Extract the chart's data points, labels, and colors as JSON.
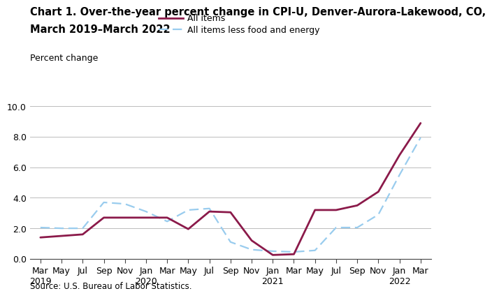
{
  "title_line1": "Chart 1. Over-the-year percent change in CPI-U, Denver-Aurora-Lakewood, CO,",
  "title_line2": "March 2019–March 2022",
  "ylabel": "Percent change",
  "source": "Source: U.S. Bureau of Labor Statistics.",
  "ylim": [
    0.0,
    10.0
  ],
  "yticks": [
    0.0,
    2.0,
    4.0,
    6.0,
    8.0,
    10.0
  ],
  "x_labels": [
    "Mar\n2019",
    "May",
    "Jul",
    "Sep",
    "Nov",
    "Jan\n2020",
    "Mar",
    "May",
    "Jul",
    "Sep",
    "Nov",
    "Jan\n2021",
    "Mar",
    "May",
    "Jul",
    "Sep",
    "Nov",
    "Jan\n2022",
    "Mar"
  ],
  "all_items": [
    1.4,
    1.5,
    1.6,
    2.7,
    2.7,
    2.7,
    2.7,
    1.95,
    3.1,
    3.05,
    1.2,
    0.25,
    0.3,
    3.2,
    3.2,
    3.5,
    4.4,
    6.8,
    8.9
  ],
  "all_items_less": [
    2.05,
    2.0,
    2.0,
    3.7,
    3.6,
    3.1,
    2.45,
    3.2,
    3.3,
    1.1,
    0.6,
    0.5,
    0.45,
    0.55,
    2.05,
    2.05,
    2.9,
    5.5,
    7.95
  ],
  "all_items_color": "#8B1A4A",
  "all_items_less_color": "#99CCEE",
  "all_items_linewidth": 2.0,
  "all_items_less_linewidth": 1.6,
  "legend_all_items": "All items",
  "legend_all_items_less": "All items less food and energy",
  "background_color": "#ffffff",
  "grid_color": "#bbbbbb",
  "title_fontsize": 10.5,
  "axis_fontsize": 9.0,
  "legend_fontsize": 9.0,
  "source_fontsize": 8.5
}
